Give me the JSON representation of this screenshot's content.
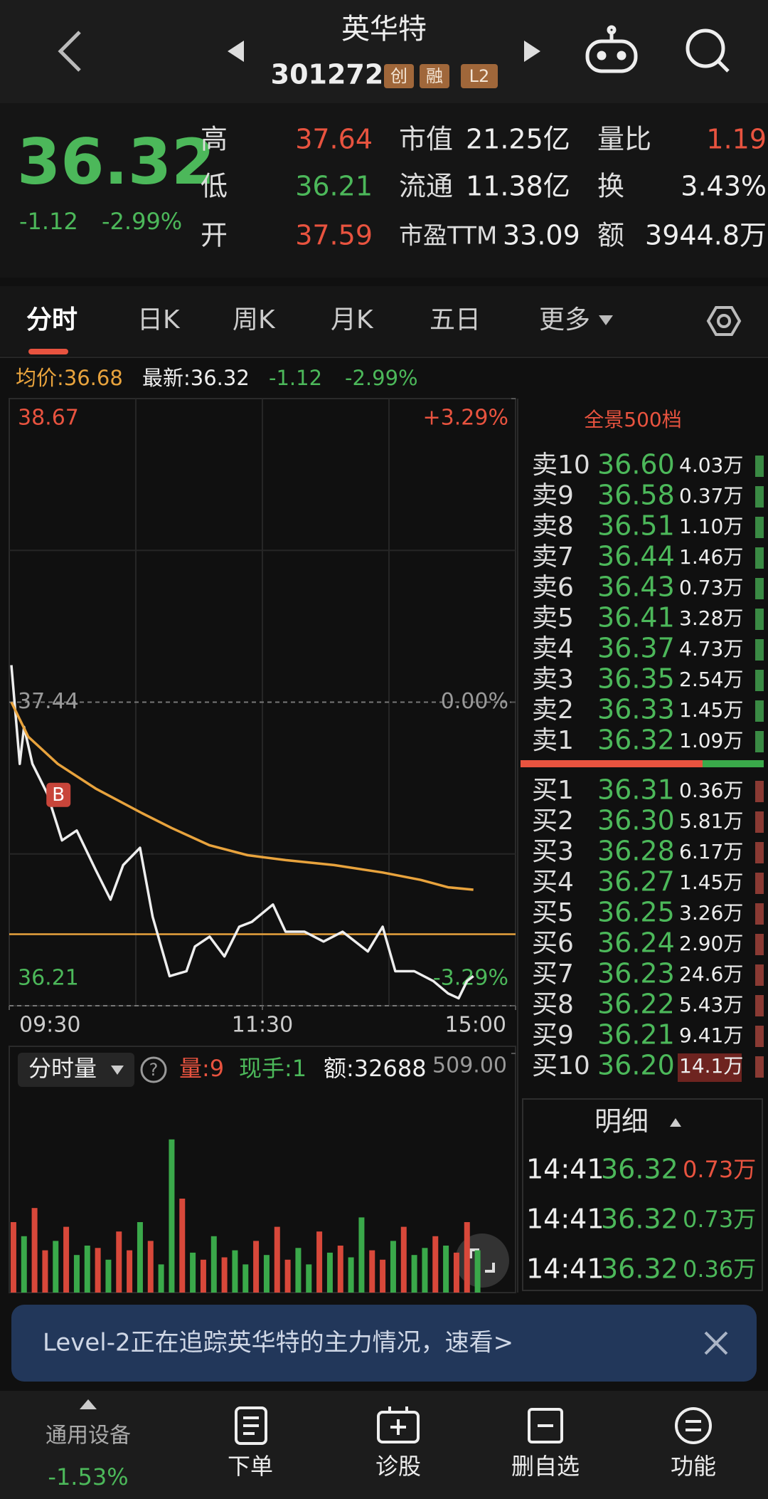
{
  "header": {
    "title": "英华特",
    "code": "301272",
    "badges": [
      "创",
      "融",
      "L2"
    ]
  },
  "quote": {
    "price": "36.32",
    "change": "-1.12",
    "change_pct": "-2.99%",
    "stats": [
      {
        "label": "高",
        "value": "37.64"
      },
      {
        "label": "低",
        "value": "36.21"
      },
      {
        "label": "开",
        "value": "37.59"
      },
      {
        "label": "市值",
        "value": "21.25亿"
      },
      {
        "label": "流通",
        "value": "11.38亿"
      },
      {
        "label": "市盈TTM",
        "value": "33.09"
      },
      {
        "label": "量比",
        "value": "1.19"
      },
      {
        "label": "换",
        "value": "3.43%"
      },
      {
        "label": "额",
        "value": "3944.8万"
      }
    ]
  },
  "tabs": [
    "分时",
    "日K",
    "周K",
    "月K",
    "五日",
    "更多"
  ],
  "info": {
    "avg": "均价:36.68",
    "last": "最新:36.32",
    "change": "-1.12",
    "change_pct": "-2.99%"
  },
  "chart_data": [
    {
      "type": "line",
      "xlim": [
        0,
        240
      ],
      "xticks": [
        {
          "value": 0,
          "label": "09:30"
        },
        {
          "value": 120,
          "label": "11:30"
        },
        {
          "value": 240,
          "label": "15:00"
        }
      ],
      "ylim": [
        36.21,
        38.67
      ],
      "yticks": [
        38.67,
        37.44,
        36.21
      ],
      "y2lim": [
        -3.29,
        3.29
      ],
      "y2ticks": [
        {
          "value": 3.29,
          "label": "+3.29%"
        },
        {
          "value": 0,
          "label": "0.00%"
        },
        {
          "value": -3.29,
          "label": "-3.29%"
        }
      ],
      "series": [
        {
          "color": "#eeeeee",
          "x": [
            1,
            5,
            7,
            11,
            18,
            25,
            32,
            41,
            48,
            54,
            62,
            68,
            76,
            84,
            88,
            95,
            102,
            109,
            115,
            125,
            131,
            140,
            149,
            158,
            170,
            177,
            183,
            192,
            201,
            208,
            213,
            217,
            220
          ],
          "values": [
            37.59,
            37.19,
            37.34,
            37.19,
            37.07,
            36.88,
            36.92,
            36.76,
            36.64,
            36.78,
            36.85,
            36.57,
            36.33,
            36.35,
            36.45,
            36.49,
            36.41,
            36.53,
            36.55,
            36.62,
            36.51,
            36.51,
            36.47,
            36.51,
            36.43,
            36.53,
            36.35,
            36.35,
            36.31,
            36.26,
            36.24,
            36.31,
            36.33
          ]
        },
        {
          "color": "#e8a33d",
          "x": [
            1,
            9,
            23,
            41,
            63,
            77,
            95,
            113,
            131,
            154,
            177,
            195,
            208,
            220
          ],
          "values": [
            37.44,
            37.3,
            37.19,
            37.09,
            36.99,
            36.93,
            36.86,
            36.82,
            36.8,
            36.78,
            36.75,
            36.72,
            36.69,
            36.68
          ]
        }
      ],
      "cost_line": {
        "value": 36.5,
        "color": "#e8a33d"
      },
      "annotations": [
        {
          "text": "B",
          "x": 23,
          "y": 37.05
        }
      ]
    },
    {
      "type": "bar",
      "xlim": [
        0,
        240
      ],
      "ylim": [
        0,
        509
      ],
      "yticks": [
        {
          "value": 509,
          "label": "509.00"
        }
      ],
      "x": [
        2,
        7,
        12,
        17,
        22,
        27,
        32,
        37,
        42,
        47,
        52,
        57,
        62,
        67,
        72,
        77,
        82,
        87,
        92,
        97,
        102,
        107,
        112,
        117,
        122,
        127,
        132,
        137,
        142,
        147,
        152,
        157,
        162,
        167,
        172,
        177,
        182,
        187,
        192,
        197,
        202,
        207,
        212,
        217,
        222
      ],
      "values": [
        150,
        120,
        180,
        90,
        110,
        140,
        80,
        100,
        95,
        70,
        130,
        90,
        150,
        110,
        60,
        326,
        200,
        85,
        70,
        120,
        75,
        90,
        60,
        110,
        80,
        140,
        70,
        95,
        60,
        130,
        85,
        100,
        75,
        160,
        90,
        70,
        110,
        140,
        80,
        95,
        120,
        100,
        85,
        150,
        90
      ],
      "colors": [
        "#d8483a",
        "#3aa94a",
        "#d8483a",
        "#d8483a",
        "#3aa94a",
        "#d8483a",
        "#3aa94a",
        "#3aa94a",
        "#d8483a",
        "#3aa94a",
        "#d8483a",
        "#d8483a",
        "#3aa94a",
        "#d8483a",
        "#3aa94a",
        "#3aa94a",
        "#d8483a",
        "#3aa94a",
        "#d8483a",
        "#3aa94a",
        "#d8483a",
        "#3aa94a",
        "#3aa94a",
        "#d8483a",
        "#3aa94a",
        "#d8483a",
        "#d8483a",
        "#3aa94a",
        "#3aa94a",
        "#d8483a",
        "#3aa94a",
        "#d8483a",
        "#3aa94a",
        "#3aa94a",
        "#d8483a",
        "#d8483a",
        "#3aa94a",
        "#d8483a",
        "#3aa94a",
        "#3aa94a",
        "#d8483a",
        "#3aa94a",
        "#d8483a",
        "#d8483a",
        "#3aa94a"
      ]
    }
  ],
  "order_book": {
    "title": "全景500档",
    "asks": [
      {
        "label": "卖10",
        "price": "36.60",
        "volume": "4.03万"
      },
      {
        "label": "卖9",
        "price": "36.58",
        "volume": "0.37万"
      },
      {
        "label": "卖8",
        "price": "36.51",
        "volume": "1.10万"
      },
      {
        "label": "卖7",
        "price": "36.44",
        "volume": "1.46万"
      },
      {
        "label": "卖6",
        "price": "36.43",
        "volume": "0.73万"
      },
      {
        "label": "卖5",
        "price": "36.41",
        "volume": "3.28万"
      },
      {
        "label": "卖4",
        "price": "36.37",
        "volume": "4.73万"
      },
      {
        "label": "卖3",
        "price": "36.35",
        "volume": "2.54万"
      },
      {
        "label": "卖2",
        "price": "36.33",
        "volume": "1.45万"
      },
      {
        "label": "卖1",
        "price": "36.32",
        "volume": "1.09万"
      }
    ],
    "bids": [
      {
        "label": "买1",
        "price": "36.31",
        "volume": "0.36万"
      },
      {
        "label": "买2",
        "price": "36.30",
        "volume": "5.81万"
      },
      {
        "label": "买3",
        "price": "36.28",
        "volume": "6.17万"
      },
      {
        "label": "买4",
        "price": "36.27",
        "volume": "1.45万"
      },
      {
        "label": "买5",
        "price": "36.25",
        "volume": "3.26万"
      },
      {
        "label": "买6",
        "price": "36.24",
        "volume": "2.90万"
      },
      {
        "label": "买7",
        "price": "36.23",
        "volume": "24.6万"
      },
      {
        "label": "买8",
        "price": "36.22",
        "volume": "5.43万"
      },
      {
        "label": "买9",
        "price": "36.21",
        "volume": "9.41万"
      },
      {
        "label": "买10",
        "price": "36.20",
        "volume": "14.1万"
      }
    ]
  },
  "volume_panel": {
    "selector": "分时量",
    "help": "?",
    "vol": "量:9",
    "hand": "现手:1",
    "amount": "额:32688"
  },
  "trades": {
    "title": "明细",
    "rows": [
      [
        "14:41",
        "36.32",
        "0.73万"
      ],
      [
        "14:41",
        "36.32",
        "0.73万"
      ],
      [
        "14:41",
        "36.32",
        "0.36万"
      ]
    ]
  },
  "banner": {
    "text": "Level-2正在追踪英华特的主力情况，速看>"
  },
  "nav": {
    "sector": "通用设备",
    "sector_change": "-1.53%",
    "items": [
      "下单",
      "诊股",
      "删自选",
      "功能"
    ]
  }
}
